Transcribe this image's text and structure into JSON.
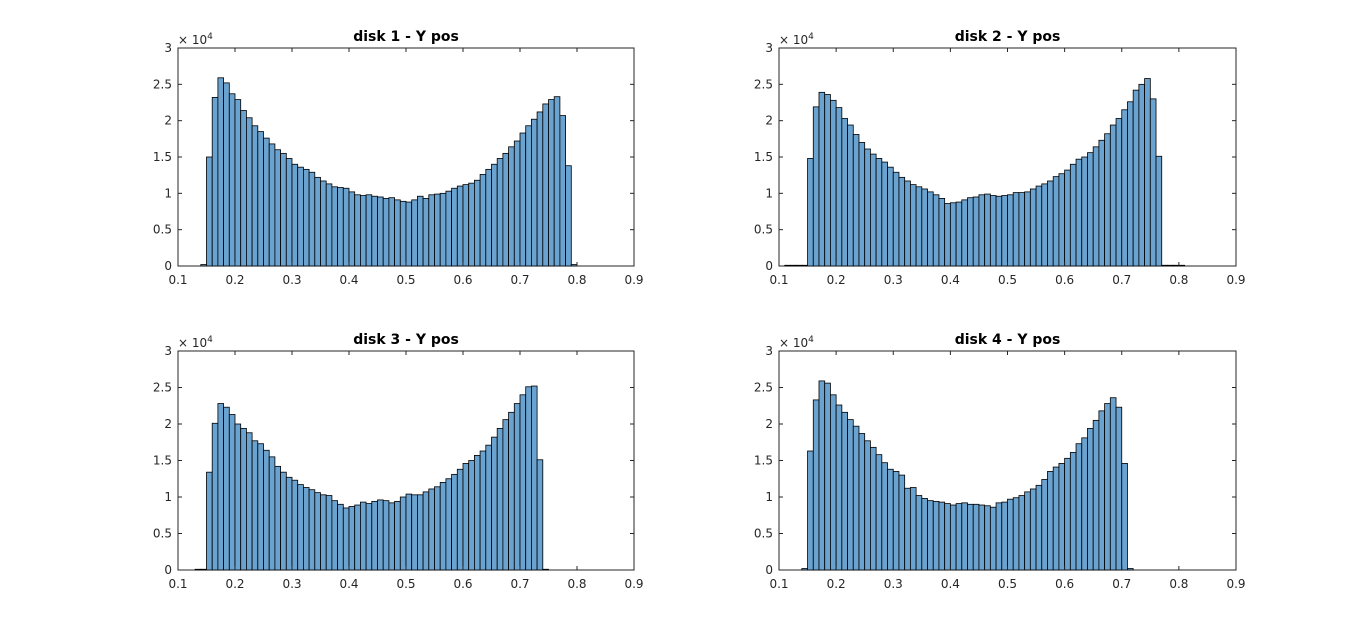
{
  "chart_data": [
    {
      "type": "bar",
      "title": "disk 1 - Y pos",
      "xlabel": "",
      "ylabel": "",
      "xlim": [
        0.1,
        0.9
      ],
      "ylim": [
        0,
        30000
      ],
      "xticks": [
        "0.1",
        "0.2",
        "0.3",
        "0.4",
        "0.5",
        "0.6",
        "0.7",
        "0.8",
        "0.9"
      ],
      "yticks": [
        "0",
        "0.5",
        "1",
        "1.5",
        "2",
        "2.5",
        "3"
      ],
      "y_exponent_base": "× 10",
      "y_exponent_power": "4",
      "grid": false,
      "bin_start": 0.14,
      "bin_width": 0.01,
      "values": [
        200,
        15000,
        23200,
        25900,
        25200,
        23700,
        22900,
        21400,
        20400,
        19300,
        18500,
        17600,
        16800,
        16000,
        15500,
        14800,
        14000,
        13600,
        13300,
        12900,
        12200,
        11700,
        11300,
        10900,
        10800,
        10700,
        10200,
        9800,
        9700,
        9800,
        9600,
        9500,
        9300,
        9400,
        9100,
        8900,
        8800,
        9100,
        9600,
        9300,
        9800,
        9900,
        10000,
        10300,
        10700,
        11000,
        11200,
        11400,
        11800,
        12600,
        13300,
        14000,
        14800,
        15500,
        16400,
        17200,
        18300,
        19300,
        20200,
        21200,
        22300,
        22900,
        23300,
        20700,
        13800,
        200
      ]
    },
    {
      "type": "bar",
      "title": "disk 2 - Y pos",
      "xlabel": "",
      "ylabel": "",
      "xlim": [
        0.1,
        0.9
      ],
      "ylim": [
        0,
        30000
      ],
      "xticks": [
        "0.1",
        "0.2",
        "0.3",
        "0.4",
        "0.5",
        "0.6",
        "0.7",
        "0.8",
        "0.9"
      ],
      "yticks": [
        "0",
        "0.5",
        "1",
        "1.5",
        "2",
        "2.5",
        "3"
      ],
      "y_exponent_base": "× 10",
      "y_exponent_power": "4",
      "grid": false,
      "bin_start": 0.11,
      "bin_width": 0.01,
      "values": [
        100,
        100,
        100,
        100,
        14800,
        21900,
        23900,
        23600,
        22800,
        21800,
        20300,
        19400,
        18100,
        17000,
        16100,
        15400,
        14800,
        14300,
        13600,
        12900,
        12200,
        11700,
        11200,
        10900,
        10600,
        10200,
        9800,
        9300,
        8600,
        8700,
        8800,
        9100,
        9400,
        9500,
        9800,
        9900,
        9700,
        9600,
        9700,
        9800,
        10100,
        10100,
        10200,
        10600,
        11000,
        11300,
        11700,
        12300,
        12700,
        13200,
        14000,
        14700,
        15000,
        15600,
        16400,
        17300,
        18200,
        19400,
        20300,
        21500,
        22600,
        24200,
        25000,
        25800,
        23000,
        15100,
        100,
        100,
        100,
        100
      ]
    },
    {
      "type": "bar",
      "title": "disk 3 - Y pos",
      "xlabel": "",
      "ylabel": "",
      "xlim": [
        0.1,
        0.9
      ],
      "ylim": [
        0,
        30000
      ],
      "xticks": [
        "0.1",
        "0.2",
        "0.3",
        "0.4",
        "0.5",
        "0.6",
        "0.7",
        "0.8",
        "0.9"
      ],
      "yticks": [
        "0",
        "0.5",
        "1",
        "1.5",
        "2",
        "2.5",
        "3"
      ],
      "y_exponent_base": "× 10",
      "y_exponent_power": "4",
      "grid": false,
      "bin_start": 0.13,
      "bin_width": 0.01,
      "values": [
        100,
        100,
        13400,
        20100,
        22800,
        22300,
        21300,
        20000,
        19400,
        18800,
        17700,
        17300,
        16400,
        15500,
        14200,
        13400,
        12700,
        12300,
        11700,
        11300,
        11000,
        10600,
        10300,
        10200,
        9500,
        9000,
        8500,
        8700,
        8900,
        9300,
        9100,
        9400,
        9600,
        9500,
        9200,
        9400,
        10000,
        10400,
        10300,
        10300,
        10700,
        11100,
        11400,
        12000,
        12500,
        13100,
        13800,
        14600,
        15000,
        15700,
        16300,
        17100,
        18200,
        19400,
        20600,
        21600,
        22800,
        24000,
        25100,
        25200,
        15100,
        100
      ]
    },
    {
      "type": "bar",
      "title": "disk 4 - Y pos",
      "xlabel": "",
      "ylabel": "",
      "xlim": [
        0.1,
        0.9
      ],
      "ylim": [
        0,
        30000
      ],
      "xticks": [
        "0.1",
        "0.2",
        "0.3",
        "0.4",
        "0.5",
        "0.6",
        "0.7",
        "0.8",
        "0.9"
      ],
      "yticks": [
        "0",
        "0.5",
        "1",
        "1.5",
        "2",
        "2.5",
        "3"
      ],
      "y_exponent_base": "× 10",
      "y_exponent_power": "4",
      "grid": false,
      "bin_start": 0.14,
      "bin_width": 0.01,
      "values": [
        200,
        16300,
        23300,
        25900,
        25600,
        24000,
        22600,
        21600,
        20600,
        19700,
        18700,
        17700,
        16800,
        15800,
        14700,
        13800,
        13500,
        13000,
        11200,
        11300,
        10200,
        9800,
        9500,
        9400,
        9300,
        9100,
        8900,
        9100,
        9200,
        9000,
        9000,
        8900,
        8800,
        8600,
        9200,
        9300,
        9700,
        9900,
        10200,
        10700,
        11100,
        11600,
        12400,
        13500,
        14100,
        14600,
        15300,
        16100,
        17300,
        18100,
        19400,
        20500,
        21800,
        22800,
        23600,
        22300,
        14600,
        200
      ]
    }
  ]
}
